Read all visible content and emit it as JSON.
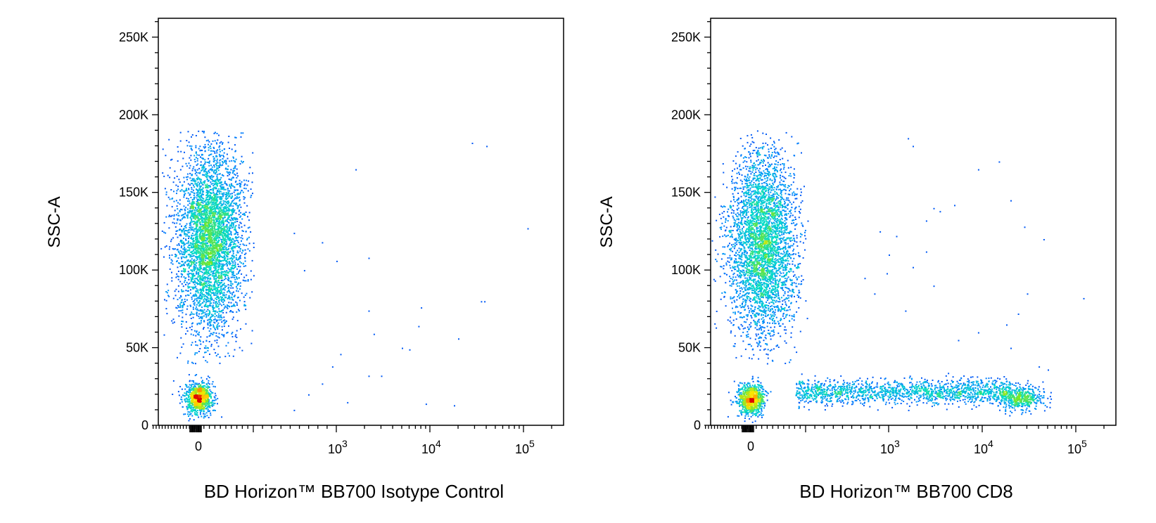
{
  "chart_data": [
    {
      "type": "scatter",
      "subtype": "flow-cytometry-density-dot-plot",
      "xlabel": "BD Horizon™ BB700 Isotype Control",
      "ylabel": "SSC-A",
      "x_scale": "biexponential",
      "y_scale": "linear",
      "ylim": [
        0,
        262144
      ],
      "xlim": [
        -150,
        262144
      ],
      "y_ticks": [
        {
          "value": 0,
          "label": "0"
        },
        {
          "value": 50000,
          "label": "50K"
        },
        {
          "value": 100000,
          "label": "100K"
        },
        {
          "value": 150000,
          "label": "150K"
        },
        {
          "value": 200000,
          "label": "200K"
        },
        {
          "value": 250000,
          "label": "250K"
        }
      ],
      "x_ticks": [
        {
          "value": 0,
          "label": "0"
        },
        {
          "value": 1000,
          "base": "10",
          "exp": "3"
        },
        {
          "value": 10000,
          "base": "10",
          "exp": "4"
        },
        {
          "value": 100000,
          "base": "10",
          "exp": "5"
        }
      ],
      "populations": [
        {
          "x_center": 0,
          "x_spread": 12,
          "y_center": 18000,
          "y_spread": 5000,
          "count": 900
        },
        {
          "x_center": 20,
          "x_spread": 30,
          "y_center": 120000,
          "y_spread": 30000,
          "count": 4200,
          "y_min": 40000,
          "y_max": 190000
        }
      ],
      "sparse_points": [
        [
          1600,
          165000
        ],
        [
          28000,
          182000
        ],
        [
          40000,
          180000
        ],
        [
          110000,
          127000
        ],
        [
          700,
          118000
        ],
        [
          1000,
          106000
        ],
        [
          2200,
          108000
        ],
        [
          450,
          100000
        ],
        [
          350,
          124000
        ],
        [
          8000,
          76000
        ],
        [
          2200,
          74000
        ],
        [
          35000,
          80000
        ],
        [
          38000,
          80000
        ],
        [
          7500,
          64000
        ],
        [
          2500,
          59000
        ],
        [
          5000,
          50000
        ],
        [
          6000,
          49000
        ],
        [
          1100,
          46000
        ],
        [
          20000,
          56000
        ],
        [
          900,
          38000
        ],
        [
          2200,
          32000
        ],
        [
          3000,
          32000
        ],
        [
          700,
          27000
        ],
        [
          1300,
          15000
        ],
        [
          9000,
          14000
        ],
        [
          18000,
          13000
        ],
        [
          350,
          10000
        ],
        [
          500,
          20000
        ]
      ]
    },
    {
      "type": "scatter",
      "subtype": "flow-cytometry-density-dot-plot",
      "xlabel": "BD Horizon™ BB700 CD8",
      "ylabel": "SSC-A",
      "x_scale": "biexponential",
      "y_scale": "linear",
      "ylim": [
        0,
        262144
      ],
      "xlim": [
        -150,
        262144
      ],
      "y_ticks": [
        {
          "value": 0,
          "label": "0"
        },
        {
          "value": 50000,
          "label": "50K"
        },
        {
          "value": 100000,
          "label": "100K"
        },
        {
          "value": 150000,
          "label": "150K"
        },
        {
          "value": 200000,
          "label": "200K"
        },
        {
          "value": 250000,
          "label": "250K"
        }
      ],
      "x_ticks": [
        {
          "value": 0,
          "label": "0"
        },
        {
          "value": 1000,
          "base": "10",
          "exp": "3"
        },
        {
          "value": 10000,
          "base": "10",
          "exp": "4"
        },
        {
          "value": 100000,
          "base": "10",
          "exp": "5"
        }
      ],
      "populations": [
        {
          "x_center": 0,
          "x_spread": 12,
          "y_center": 17000,
          "y_spread": 5000,
          "count": 850
        },
        {
          "x_center": 20,
          "x_spread": 30,
          "y_center": 118000,
          "y_spread": 30000,
          "count": 3800,
          "y_min": 40000,
          "y_max": 190000
        },
        {
          "x_log_min": 2.0,
          "x_log_max": 4.3,
          "y_center": 22000,
          "y_spread": 4000,
          "count": 1500
        },
        {
          "x_center": 25000,
          "x_log_spread": 0.12,
          "y_center": 18000,
          "y_spread": 4000,
          "count": 500
        }
      ],
      "sparse_points": [
        [
          1800,
          180000
        ],
        [
          1600,
          185000
        ],
        [
          15000,
          170000
        ],
        [
          9000,
          165000
        ],
        [
          20000,
          145000
        ],
        [
          3000,
          140000
        ],
        [
          3500,
          138000
        ],
        [
          5000,
          142000
        ],
        [
          2500,
          132000
        ],
        [
          28000,
          128000
        ],
        [
          45000,
          120000
        ],
        [
          800,
          125000
        ],
        [
          1200,
          122000
        ],
        [
          1000,
          110000
        ],
        [
          2500,
          112000
        ],
        [
          3000,
          90000
        ],
        [
          950,
          98000
        ],
        [
          1800,
          102000
        ],
        [
          30000,
          85000
        ],
        [
          120000,
          82000
        ],
        [
          1500,
          74000
        ],
        [
          18000,
          65000
        ],
        [
          24000,
          72000
        ],
        [
          9000,
          60000
        ],
        [
          5500,
          55000
        ],
        [
          20000,
          50000
        ],
        [
          40000,
          38000
        ],
        [
          50000,
          36000
        ],
        [
          700,
          85000
        ],
        [
          550,
          95000
        ]
      ]
    }
  ]
}
